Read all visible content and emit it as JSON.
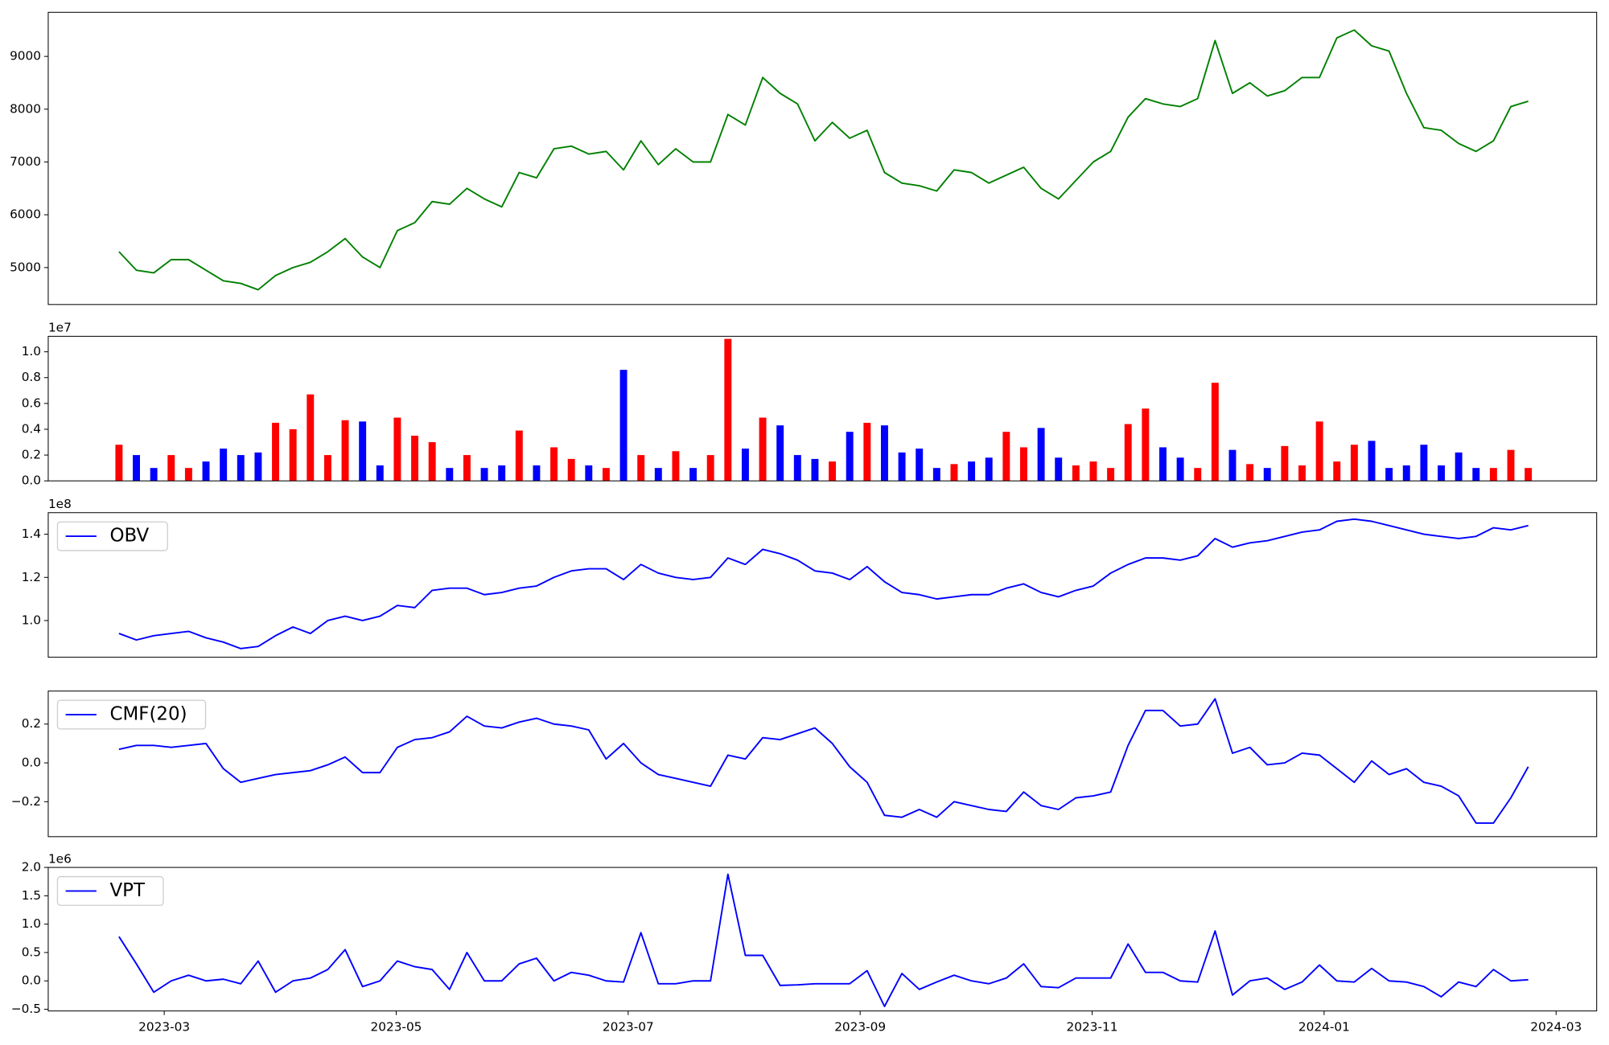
{
  "chart_data": [
    {
      "type": "line",
      "xlim": [
        -1.0,
        12.35
      ],
      "ylim": [
        4300,
        9835
      ],
      "yticks": [
        5000,
        6000,
        7000,
        8000,
        9000
      ],
      "x": [
        -0.39,
        -0.24,
        -0.09,
        0.06,
        0.21,
        0.36,
        0.51,
        0.66,
        0.81,
        0.96,
        1.11,
        1.26,
        1.41,
        1.56,
        1.71,
        1.86,
        2.01,
        2.16,
        2.31,
        2.46,
        2.61,
        2.76,
        2.91,
        3.06,
        3.21,
        3.36,
        3.51,
        3.66,
        3.81,
        3.96,
        4.11,
        4.26,
        4.41,
        4.56,
        4.71,
        4.86,
        5.01,
        5.16,
        5.31,
        5.46,
        5.61,
        5.76,
        5.91,
        6.06,
        6.21,
        6.36,
        6.51,
        6.66,
        6.81,
        6.96,
        7.11,
        7.26,
        7.41,
        7.56,
        7.71,
        7.86,
        8.01,
        8.16,
        8.31,
        8.46,
        8.61,
        8.76,
        8.91,
        9.06,
        9.21,
        9.36,
        9.51,
        9.66,
        9.81,
        9.96,
        10.11,
        10.26,
        10.41,
        10.56,
        10.71,
        10.86,
        11.01,
        11.16,
        11.31,
        11.46,
        11.61,
        11.76
      ],
      "series": [
        {
          "color": "green",
          "values": [
            5300,
            4950,
            4900,
            5150,
            5150,
            4950,
            4750,
            4700,
            4580,
            4850,
            5000,
            5100,
            5300,
            5550,
            5200,
            5000,
            5700,
            5850,
            6250,
            6200,
            6500,
            6300,
            6150,
            6800,
            6700,
            7250,
            7300,
            7150,
            7200,
            6850,
            7400,
            6950,
            7250,
            7000,
            7000,
            7900,
            7700,
            8600,
            8300,
            8100,
            7400,
            7750,
            7450,
            7600,
            6800,
            6600,
            6550,
            6450,
            6850,
            6800,
            6600,
            6750,
            6900,
            6500,
            6300,
            6650,
            7000,
            7200,
            7850,
            8200,
            8100,
            8050,
            8200,
            9300,
            8300,
            8500,
            8250,
            8350,
            8600,
            8600,
            9350,
            9500,
            9200,
            9100,
            8300,
            7650,
            7600,
            7350,
            7200,
            7400,
            8050,
            8150
          ]
        }
      ]
    },
    {
      "type": "bar",
      "offset_label": "1e7",
      "xlim": [
        -1.0,
        12.35
      ],
      "ylim": [
        0,
        1.12
      ],
      "yticks": [
        {
          "value": 0,
          "label": "0.0"
        },
        {
          "value": 0.2,
          "label": "0.2"
        },
        {
          "value": 0.4,
          "label": "0.4"
        },
        {
          "value": 0.6,
          "label": "0.6"
        },
        {
          "value": 0.8,
          "label": "0.8"
        },
        {
          "value": 1.0,
          "label": "1.0"
        }
      ],
      "x": [
        -0.39,
        -0.24,
        -0.09,
        0.06,
        0.21,
        0.36,
        0.51,
        0.66,
        0.81,
        0.96,
        1.11,
        1.26,
        1.41,
        1.56,
        1.71,
        1.86,
        2.01,
        2.16,
        2.31,
        2.46,
        2.61,
        2.76,
        2.91,
        3.06,
        3.21,
        3.36,
        3.51,
        3.66,
        3.81,
        3.96,
        4.11,
        4.26,
        4.41,
        4.56,
        4.71,
        4.86,
        5.01,
        5.16,
        5.31,
        5.46,
        5.61,
        5.76,
        5.91,
        6.06,
        6.21,
        6.36,
        6.51,
        6.66,
        6.81,
        6.96,
        7.11,
        7.26,
        7.41,
        7.56,
        7.71,
        7.86,
        8.01,
        8.16,
        8.31,
        8.46,
        8.61,
        8.76,
        8.91,
        9.06,
        9.21,
        9.36,
        9.51,
        9.66,
        9.81,
        9.96,
        10.11,
        10.26,
        10.41,
        10.56,
        10.71,
        10.86,
        11.01,
        11.16,
        11.31,
        11.46,
        11.61,
        11.76
      ],
      "values": [
        0.28,
        0.2,
        0.1,
        0.2,
        0.1,
        0.15,
        0.25,
        0.2,
        0.22,
        0.45,
        0.4,
        0.67,
        0.2,
        0.47,
        0.46,
        0.12,
        0.49,
        0.35,
        0.3,
        0.1,
        0.2,
        0.1,
        0.12,
        0.39,
        0.12,
        0.26,
        0.17,
        0.12,
        0.1,
        0.86,
        0.2,
        0.1,
        0.23,
        0.1,
        0.2,
        1.1,
        0.25,
        0.49,
        0.43,
        0.2,
        0.17,
        0.15,
        0.38,
        0.45,
        0.43,
        0.22,
        0.25,
        0.1,
        0.13,
        0.15,
        0.18,
        0.38,
        0.26,
        0.41,
        0.18,
        0.12,
        0.15,
        0.1,
        0.44,
        0.56,
        0.26,
        0.18,
        0.1,
        0.76,
        0.24,
        0.13,
        0.1,
        0.27,
        0.12,
        0.46,
        0.15,
        0.28,
        0.31,
        0.1,
        0.12,
        0.28,
        0.12,
        0.22,
        0.1,
        0.1,
        0.24,
        0.1
      ],
      "colors": [
        "red",
        "blue",
        "blue",
        "red",
        "red",
        "blue",
        "blue",
        "blue",
        "blue",
        "red",
        "red",
        "red",
        "red",
        "red",
        "blue",
        "blue",
        "red",
        "red",
        "red",
        "blue",
        "red",
        "blue",
        "blue",
        "red",
        "blue",
        "red",
        "red",
        "blue",
        "red",
        "blue",
        "red",
        "blue",
        "red",
        "blue",
        "red",
        "red",
        "blue",
        "red",
        "blue",
        "blue",
        "blue",
        "red",
        "blue",
        "red",
        "blue",
        "blue",
        "blue",
        "blue",
        "red",
        "blue",
        "blue",
        "red",
        "red",
        "blue",
        "blue",
        "red",
        "red",
        "red",
        "red",
        "red",
        "blue",
        "blue",
        "red",
        "red",
        "blue",
        "red",
        "blue",
        "red",
        "red",
        "red",
        "red",
        "red",
        "blue",
        "blue",
        "blue",
        "blue",
        "blue",
        "blue",
        "blue",
        "red",
        "red",
        "red"
      ]
    },
    {
      "type": "line",
      "offset_label": "1e8",
      "xlim": [
        -1.0,
        12.35
      ],
      "ylim": [
        0.83,
        1.5
      ],
      "legend": "upper left",
      "yticks": [
        {
          "value": 1.0,
          "label": "1.0"
        },
        {
          "value": 1.2,
          "label": "1.2"
        },
        {
          "value": 1.4,
          "label": "1.4"
        }
      ],
      "x": [
        -0.39,
        -0.24,
        -0.09,
        0.06,
        0.21,
        0.36,
        0.51,
        0.66,
        0.81,
        0.96,
        1.11,
        1.26,
        1.41,
        1.56,
        1.71,
        1.86,
        2.01,
        2.16,
        2.31,
        2.46,
        2.61,
        2.76,
        2.91,
        3.06,
        3.21,
        3.36,
        3.51,
        3.66,
        3.81,
        3.96,
        4.11,
        4.26,
        4.41,
        4.56,
        4.71,
        4.86,
        5.01,
        5.16,
        5.31,
        5.46,
        5.61,
        5.76,
        5.91,
        6.06,
        6.21,
        6.36,
        6.51,
        6.66,
        6.81,
        6.96,
        7.11,
        7.26,
        7.41,
        7.56,
        7.71,
        7.86,
        8.01,
        8.16,
        8.31,
        8.46,
        8.61,
        8.76,
        8.91,
        9.06,
        9.21,
        9.36,
        9.51,
        9.66,
        9.81,
        9.96,
        10.11,
        10.26,
        10.41,
        10.56,
        10.71,
        10.86,
        11.01,
        11.16,
        11.31,
        11.46,
        11.61,
        11.76
      ],
      "series": [
        {
          "name": "OBV",
          "color": "blue",
          "values": [
            0.94,
            0.91,
            0.93,
            0.94,
            0.95,
            0.92,
            0.9,
            0.87,
            0.88,
            0.93,
            0.97,
            0.94,
            1.0,
            1.02,
            1.0,
            1.02,
            1.07,
            1.06,
            1.14,
            1.15,
            1.15,
            1.12,
            1.13,
            1.15,
            1.16,
            1.2,
            1.23,
            1.24,
            1.24,
            1.19,
            1.26,
            1.22,
            1.2,
            1.19,
            1.2,
            1.29,
            1.26,
            1.33,
            1.31,
            1.28,
            1.23,
            1.22,
            1.19,
            1.25,
            1.18,
            1.13,
            1.12,
            1.1,
            1.11,
            1.12,
            1.12,
            1.15,
            1.17,
            1.13,
            1.11,
            1.14,
            1.16,
            1.22,
            1.26,
            1.29,
            1.29,
            1.28,
            1.3,
            1.38,
            1.34,
            1.36,
            1.37,
            1.39,
            1.41,
            1.42,
            1.46,
            1.47,
            1.46,
            1.44,
            1.42,
            1.4,
            1.39,
            1.38,
            1.39,
            1.43,
            1.42,
            1.44
          ]
        }
      ]
    },
    {
      "type": "line",
      "xlim": [
        -1.0,
        12.35
      ],
      "ylim": [
        -0.38,
        0.37
      ],
      "legend": "upper left",
      "yticks": [
        {
          "value": -0.2,
          "label": "−0.2"
        },
        {
          "value": 0,
          "label": "0.0"
        },
        {
          "value": 0.2,
          "label": "0.2"
        }
      ],
      "x": [
        -0.39,
        -0.24,
        -0.09,
        0.06,
        0.21,
        0.36,
        0.51,
        0.66,
        0.81,
        0.96,
        1.11,
        1.26,
        1.41,
        1.56,
        1.71,
        1.86,
        2.01,
        2.16,
        2.31,
        2.46,
        2.61,
        2.76,
        2.91,
        3.06,
        3.21,
        3.36,
        3.51,
        3.66,
        3.81,
        3.96,
        4.11,
        4.26,
        4.41,
        4.56,
        4.71,
        4.86,
        5.01,
        5.16,
        5.31,
        5.46,
        5.61,
        5.76,
        5.91,
        6.06,
        6.21,
        6.36,
        6.51,
        6.66,
        6.81,
        6.96,
        7.11,
        7.26,
        7.41,
        7.56,
        7.71,
        7.86,
        8.01,
        8.16,
        8.31,
        8.46,
        8.61,
        8.76,
        8.91,
        9.06,
        9.21,
        9.36,
        9.51,
        9.66,
        9.81,
        9.96,
        10.11,
        10.26,
        10.41,
        10.56,
        10.71,
        10.86,
        11.01,
        11.16,
        11.31,
        11.46,
        11.61,
        11.76
      ],
      "series": [
        {
          "name": "CMF(20)",
          "color": "blue",
          "values": [
            0.07,
            0.09,
            0.09,
            0.08,
            0.09,
            0.1,
            -0.03,
            -0.1,
            -0.08,
            -0.06,
            -0.05,
            -0.04,
            -0.01,
            0.03,
            -0.05,
            -0.05,
            0.08,
            0.12,
            0.13,
            0.16,
            0.24,
            0.19,
            0.18,
            0.21,
            0.23,
            0.2,
            0.19,
            0.17,
            0.02,
            0.1,
            0.0,
            -0.06,
            -0.08,
            -0.1,
            -0.12,
            0.04,
            0.02,
            0.13,
            0.12,
            0.15,
            0.18,
            0.1,
            -0.02,
            -0.1,
            -0.27,
            -0.28,
            -0.24,
            -0.28,
            -0.2,
            -0.22,
            -0.24,
            -0.25,
            -0.15,
            -0.22,
            -0.24,
            -0.18,
            -0.17,
            -0.15,
            0.09,
            0.27,
            0.27,
            0.19,
            0.2,
            0.33,
            0.05,
            0.08,
            -0.01,
            0.0,
            0.05,
            0.04,
            -0.03,
            -0.1,
            0.01,
            -0.06,
            -0.03,
            -0.1,
            -0.12,
            -0.17,
            -0.31,
            -0.31,
            -0.18,
            -0.02
          ]
        }
      ]
    },
    {
      "type": "line",
      "offset_label": "1e6",
      "xlim": [
        -1.0,
        12.35
      ],
      "ylim": [
        -0.53,
        2.0
      ],
      "legend": "upper left",
      "yticks": [
        {
          "value": -0.5,
          "label": "−0.5"
        },
        {
          "value": 0,
          "label": "0.0"
        },
        {
          "value": 0.5,
          "label": "0.5"
        },
        {
          "value": 1.0,
          "label": "1.0"
        },
        {
          "value": 1.5,
          "label": "1.5"
        },
        {
          "value": 2.0,
          "label": "2.0"
        }
      ],
      "xticks": [
        {
          "value": 0,
          "label": "2023-03"
        },
        {
          "value": 2,
          "label": "2023-05"
        },
        {
          "value": 4,
          "label": "2023-07"
        },
        {
          "value": 6,
          "label": "2023-09"
        },
        {
          "value": 8,
          "label": "2023-11"
        },
        {
          "value": 10,
          "label": "2024-01"
        },
        {
          "value": 12,
          "label": "2024-03"
        }
      ],
      "x": [
        -0.39,
        -0.24,
        -0.09,
        0.06,
        0.21,
        0.36,
        0.51,
        0.66,
        0.81,
        0.96,
        1.11,
        1.26,
        1.41,
        1.56,
        1.71,
        1.86,
        2.01,
        2.16,
        2.31,
        2.46,
        2.61,
        2.76,
        2.91,
        3.06,
        3.21,
        3.36,
        3.51,
        3.66,
        3.81,
        3.96,
        4.11,
        4.26,
        4.41,
        4.56,
        4.71,
        4.86,
        5.01,
        5.16,
        5.31,
        5.46,
        5.61,
        5.76,
        5.91,
        6.06,
        6.21,
        6.36,
        6.51,
        6.66,
        6.81,
        6.96,
        7.11,
        7.26,
        7.41,
        7.56,
        7.71,
        7.86,
        8.01,
        8.16,
        8.31,
        8.46,
        8.61,
        8.76,
        8.91,
        9.06,
        9.21,
        9.36,
        9.51,
        9.66,
        9.81,
        9.96,
        10.11,
        10.26,
        10.41,
        10.56,
        10.71,
        10.86,
        11.01,
        11.16,
        11.31,
        11.46,
        11.61,
        11.76
      ],
      "series": [
        {
          "name": "VPT",
          "color": "blue",
          "values": [
            0.78,
            0.3,
            -0.2,
            0,
            0.1,
            0,
            0.03,
            -0.05,
            0.35,
            -0.2,
            0,
            0.05,
            0.2,
            0.55,
            -0.1,
            0,
            0.35,
            0.25,
            0.2,
            -0.15,
            0.5,
            0.0,
            0,
            0.3,
            0.4,
            0.0,
            0.15,
            0.1,
            0,
            -0.02,
            0.85,
            -0.05,
            -0.05,
            0.0,
            0,
            1.88,
            0.45,
            0.45,
            -0.08,
            -0.07,
            -0.05,
            -0.05,
            -0.05,
            0.18,
            -0.45,
            0.13,
            -0.15,
            -0.02,
            0.1,
            0,
            -0.05,
            0.05,
            0.3,
            -0.1,
            -0.12,
            0.05,
            0.05,
            0.05,
            0.65,
            0.15,
            0.15,
            0,
            -0.02,
            0.88,
            -0.25,
            0,
            0.05,
            -0.15,
            -0.02,
            0.28,
            0,
            -0.02,
            0.22,
            0,
            -0.02,
            -0.1,
            -0.28,
            -0.02,
            -0.1,
            0.2,
            0,
            0.02
          ]
        }
      ]
    }
  ]
}
